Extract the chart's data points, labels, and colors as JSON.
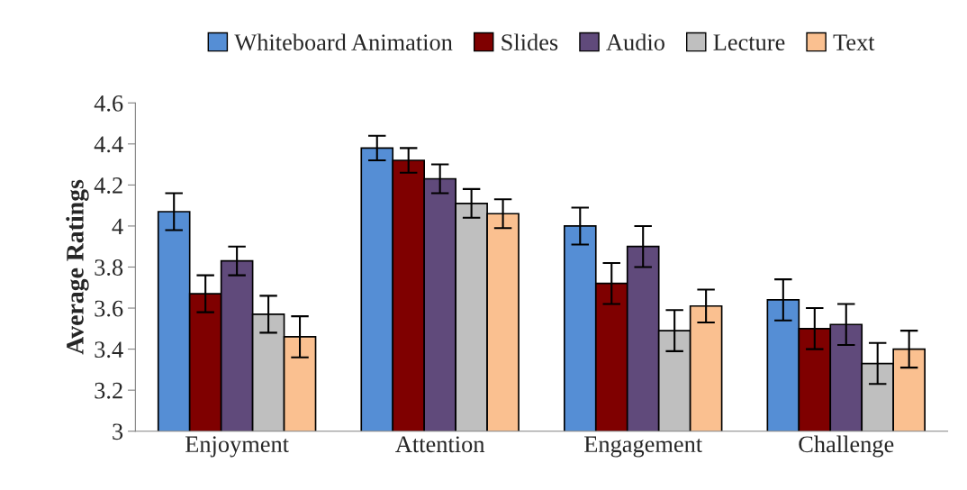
{
  "chart_data": {
    "type": "bar",
    "ylabel": "Average Ratings",
    "categories": [
      "Enjoyment",
      "Attention",
      "Engagement",
      "Challenge"
    ],
    "series": [
      {
        "name": "Whiteboard Animation",
        "color": "#558ed5",
        "values": [
          4.07,
          4.38,
          4.0,
          3.64
        ],
        "errors": [
          0.09,
          0.06,
          0.09,
          0.1
        ]
      },
      {
        "name": "Slides",
        "color": "#7f0000",
        "values": [
          3.67,
          4.32,
          3.72,
          3.5
        ],
        "errors": [
          0.09,
          0.06,
          0.1,
          0.1
        ]
      },
      {
        "name": "Audio",
        "color": "#604a7b",
        "values": [
          3.83,
          4.23,
          3.9,
          3.52
        ],
        "errors": [
          0.07,
          0.07,
          0.1,
          0.1
        ]
      },
      {
        "name": "Lecture",
        "color": "#bfbfbf",
        "values": [
          3.57,
          4.11,
          3.49,
          3.33
        ],
        "errors": [
          0.09,
          0.07,
          0.1,
          0.1
        ]
      },
      {
        "name": "Text",
        "color": "#fac090",
        "values": [
          3.46,
          4.06,
          3.61,
          3.4
        ],
        "errors": [
          0.1,
          0.07,
          0.08,
          0.09
        ]
      }
    ],
    "ylim": [
      3,
      4.6
    ],
    "yticks": [
      3,
      3.2,
      3.4,
      3.6,
      3.8,
      4,
      4.2,
      4.4,
      4.6
    ],
    "grid": false,
    "legend": "top"
  }
}
